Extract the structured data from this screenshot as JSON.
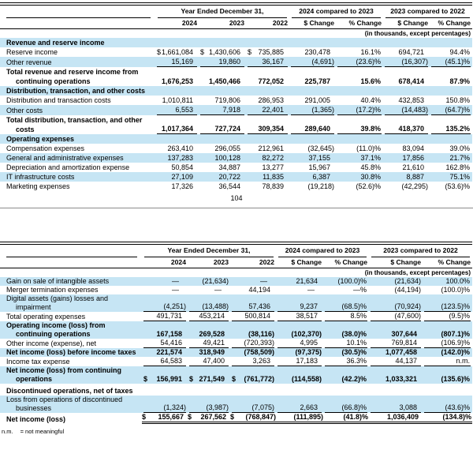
{
  "page": {
    "number": "104"
  },
  "footnote": {
    "abbr": "n.m.",
    "definition": "= not meaningful"
  },
  "colors": {
    "highlight": "#c6e5f4",
    "rule": "#000000",
    "page_divider": "#8c8c8c"
  },
  "tables": [
    {
      "header": {
        "group_year": "Year Ended December 31,",
        "group_cmp1": "2024 compared to 2023",
        "group_cmp2": "2023 compared to 2022",
        "columns": [
          "2024",
          "2023",
          "2022",
          "$ Change",
          "% Change",
          "$ Change",
          "% Change"
        ],
        "note": "(in thousands, except percentages)"
      },
      "rows": [
        {
          "label": "Revenue and reserve income",
          "b": true
        },
        {
          "label": "Reserve income",
          "ds": true,
          "values": [
            "1,661,084",
            "1,430,606",
            "735,885",
            "230,478",
            "16.1%",
            "694,721",
            "94.4%"
          ]
        },
        {
          "label": "Other revenue",
          "u": true,
          "values": [
            "15,169",
            "19,860",
            "36,167",
            "(4,691)",
            "(23.6)%",
            "(16,307)",
            "(45.1)%"
          ]
        },
        {
          "label": "Total revenue and reserve income from continuing operations",
          "b": true,
          "values": [
            "1,676,253",
            "1,450,466",
            "772,052",
            "225,787",
            "15.6%",
            "678,414",
            "87.9%"
          ]
        },
        {
          "label": "Distribution, transaction, and other costs",
          "b": true
        },
        {
          "label": "Distribution and transaction costs",
          "values": [
            "1,010,811",
            "719,806",
            "286,953",
            "291,005",
            "40.4%",
            "432,853",
            "150.8%"
          ]
        },
        {
          "label": "Other costs",
          "u": true,
          "values": [
            "6,553",
            "7,918",
            "22,401",
            "(1,365)",
            "(17.2)%",
            "(14,483)",
            "(64.7)%"
          ]
        },
        {
          "label": "Total distribution, transaction, and other costs",
          "b": true,
          "u": true,
          "values": [
            "1,017,364",
            "727,724",
            "309,354",
            "289,640",
            "39.8%",
            "418,370",
            "135.2%"
          ]
        },
        {
          "label": "Operating expenses",
          "b": true
        },
        {
          "label": "Compensation expenses",
          "values": [
            "263,410",
            "296,055",
            "212,961",
            "(32,645)",
            "(11.0)%",
            "83,094",
            "39.0%"
          ]
        },
        {
          "label": "General and administrative expenses",
          "values": [
            "137,283",
            "100,128",
            "82,272",
            "37,155",
            "37.1%",
            "17,856",
            "21.7%"
          ]
        },
        {
          "label": "Depreciation and amortization expense",
          "values": [
            "50,854",
            "34,887",
            "13,277",
            "15,967",
            "45.8%",
            "21,610",
            "162.8%"
          ]
        },
        {
          "label": "IT infrastructure costs",
          "values": [
            "27,109",
            "20,722",
            "11,835",
            "6,387",
            "30.8%",
            "8,887",
            "75.1%"
          ]
        },
        {
          "label": "Marketing expenses",
          "values": [
            "17,326",
            "36,544",
            "78,839",
            "(19,218)",
            "(52.6)%",
            "(42,295)",
            "(53.6)%"
          ]
        }
      ]
    },
    {
      "header": {
        "group_year": "Year Ended December 31,",
        "group_cmp1": "2024 compared to 2023",
        "group_cmp2": "2023 compared to 2022",
        "columns": [
          "2024",
          "2023",
          "2022",
          "$ Change",
          "% Change",
          "$ Change",
          "% Change"
        ],
        "note": "(in thousands, except percentages)"
      },
      "rows": [
        {
          "label": "Gain on sale of intangible assets",
          "values": [
            "—",
            "(21,634)",
            "—",
            "21,634",
            "(100.0)%",
            "(21,634)",
            "100.0%"
          ]
        },
        {
          "label": "Merger termination expenses",
          "values": [
            "—",
            "—",
            "44,194",
            "—",
            "—%",
            "(44,194)",
            "(100.0)%"
          ]
        },
        {
          "label": "Digital assets (gains) losses and impairment",
          "u": true,
          "values": [
            "(4,251)",
            "(13,488)",
            "57,436",
            "9,237",
            "(68.5)%",
            "(70,924)",
            "(123.5)%"
          ]
        },
        {
          "label": "Total operating expenses",
          "u": true,
          "values": [
            "491,731",
            "453,214",
            "500,814",
            "38,517",
            "8.5%",
            "(47,600)",
            "(9.5)%"
          ]
        },
        {
          "label": "Operating income (loss) from continuing operations",
          "b": true,
          "values": [
            "167,158",
            "269,528",
            "(38,116)",
            "(102,370)",
            "(38.0)%",
            "307,644",
            "(807.1)%"
          ]
        },
        {
          "label": "Other income (expense), net",
          "u": true,
          "values": [
            "54,416",
            "49,421",
            "(720,393)",
            "4,995",
            "10.1%",
            "769,814",
            "(106.9)%"
          ]
        },
        {
          "label": "Net income (loss) before income taxes",
          "b": true,
          "values": [
            "221,574",
            "318,949",
            "(758,509)",
            "(97,375)",
            "(30.5)%",
            "1,077,458",
            "(142.0)%"
          ]
        },
        {
          "label": "Income tax expense",
          "u": true,
          "values": [
            "64,583",
            "47,400",
            "3,263",
            "17,183",
            "36.3%",
            "44,137",
            "n.m."
          ]
        },
        {
          "label": "Net income (loss) from continuing operations",
          "b": true,
          "ds": true,
          "values": [
            "156,991",
            "271,549",
            "(761,772)",
            "(114,558)",
            "(42.2)%",
            "1,033,321",
            "(135.6)%"
          ]
        },
        {
          "label": "Discontinued operations, net of taxes",
          "b": true,
          "gap": true
        },
        {
          "label": "Loss from operations of discontinued businesses",
          "u": true,
          "values": [
            "(1,324)",
            "(3,987)",
            "(7,075)",
            "2,663",
            "(66.8)%",
            "3,088",
            "(43.6)%"
          ]
        },
        {
          "label": "Net income (loss)",
          "b": true,
          "dbl": true,
          "ds": true,
          "values": [
            "155,667",
            "267,562",
            "(768,847)",
            "(111,895)",
            "(41.8)%",
            "1,036,409",
            "(134.8)%"
          ]
        }
      ]
    }
  ]
}
